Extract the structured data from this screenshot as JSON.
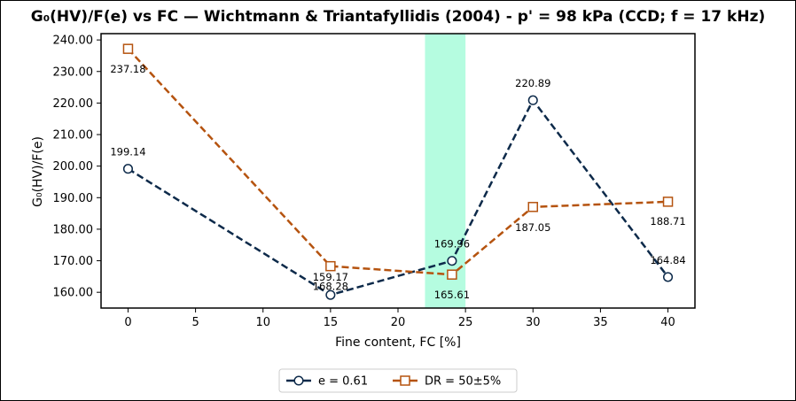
{
  "chart_data": {
    "type": "line",
    "title": "G₀(HV)/F(e) vs FC — Wichtmann & Triantafyllidis (2004) - p' = 98 kPa (CCD; f = 17 kHz)",
    "xlabel": "Fine content, FC [%]",
    "ylabel": "G₀(HV)/F(e)",
    "xlim": [
      -2,
      42
    ],
    "ylim": [
      155,
      242
    ],
    "xticks": [
      0,
      5,
      10,
      15,
      20,
      25,
      30,
      35,
      40
    ],
    "yticks": [
      160,
      170,
      180,
      190,
      200,
      210,
      220,
      230,
      240
    ],
    "ytick_labels": [
      "160.00",
      "170.00",
      "180.00",
      "190.00",
      "200.00",
      "210.00",
      "220.00",
      "230.00",
      "240.00"
    ],
    "shaded_band": {
      "x": [
        22,
        25
      ],
      "color": "#b5fce0"
    },
    "grid": false,
    "legend_position": "bottom-center",
    "series": [
      {
        "name": "e = 0.61",
        "color": "#0d2a4a",
        "marker": "circle",
        "x": [
          0,
          15,
          24,
          30,
          40
        ],
        "y": [
          199.14,
          159.17,
          169.96,
          220.89,
          164.84
        ],
        "labels": [
          "199.14",
          "159.17",
          "169.96",
          "220.89",
          "164.84"
        ]
      },
      {
        "name": "DR = 50±5%",
        "color": "#b5530f",
        "marker": "square",
        "x": [
          0,
          15,
          24,
          30,
          40
        ],
        "y": [
          237.18,
          168.28,
          165.61,
          187.05,
          188.71
        ],
        "labels": [
          "237.18",
          "168.28",
          "165.61",
          "187.05",
          "188.71"
        ]
      }
    ]
  }
}
